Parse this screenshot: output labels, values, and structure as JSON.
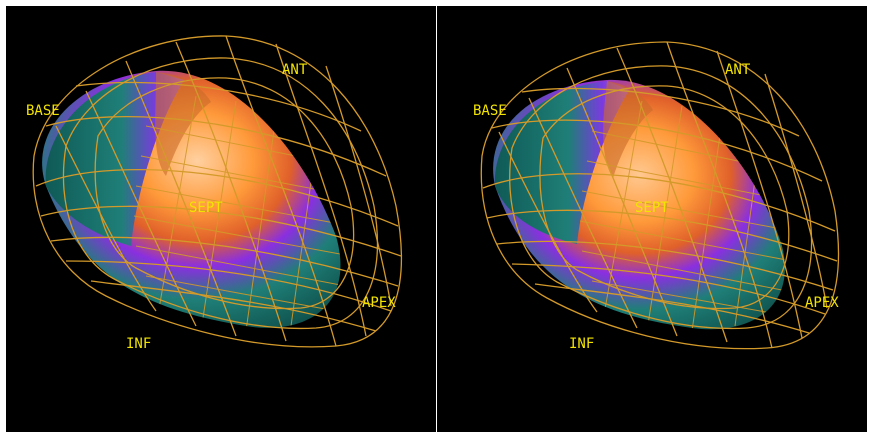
{
  "views": [
    {
      "id": "left",
      "labels": {
        "base": "BASE",
        "ant": "ANT",
        "sept": "SEPT",
        "apex": "APEX",
        "inf": "INF"
      }
    },
    {
      "id": "right",
      "labels": {
        "base": "BASE",
        "ant": "ANT",
        "sept": "SEPT",
        "apex": "APEX",
        "inf": "INF"
      }
    }
  ],
  "colors": {
    "background": "#000000",
    "frame": "#ffffff",
    "wireframe": "#d39a2a",
    "label": "#f2e400",
    "surface_teal": "#1f7f78",
    "surface_purple": "#8a2fe0",
    "surface_orange": "#ff9a3a"
  }
}
